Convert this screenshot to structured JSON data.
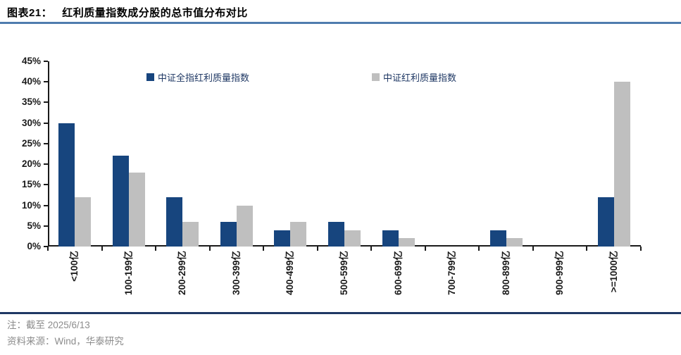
{
  "figure": {
    "label": "图表21：",
    "title": "红利质量指数成分股的总市值分布对比"
  },
  "chart_data": {
    "type": "bar",
    "title": "红利质量指数成分股的总市值分布对比",
    "categories": [
      "<100亿",
      "100-199亿",
      "200-299亿",
      "300-399亿",
      "400-499亿",
      "500-599亿",
      "600-699亿",
      "700-799亿",
      "800-899亿",
      "900-999亿",
      ">=1000亿"
    ],
    "series": [
      {
        "name": "中证全指红利质量指数",
        "color": "#17457E",
        "values": [
          30,
          22,
          12,
          6,
          4,
          6,
          4,
          0,
          4,
          0,
          12
        ]
      },
      {
        "name": "中证红利质量指数",
        "color": "#BFBFBF",
        "values": [
          12,
          18,
          6,
          10,
          6,
          4,
          2,
          0,
          2,
          0,
          40
        ]
      }
    ],
    "xlabel": "",
    "ylabel": "",
    "ylim": [
      0,
      45
    ],
    "ytick_step": 5,
    "ytick_labels": [
      "45%",
      "40%",
      "35%",
      "30%",
      "25%",
      "20%",
      "15%",
      "10%",
      "5%",
      "0%"
    ],
    "ytick_format": "percent",
    "grid": false,
    "legend_position": "top-inside"
  },
  "notes": {
    "note": "注：截至 2025/6/13",
    "source": "资料来源：Wind，华泰研究"
  },
  "colors": {
    "title_text": "#000000",
    "title_rule": "#4F7CAE",
    "footer_rule": "#1F3864",
    "axis": "#1A1A1A",
    "tick_label": "#1A1A1A",
    "legend_text": "#1F3864",
    "note_text": "#8C8C8C",
    "bar_navy": "#17457E",
    "bar_gray": "#BFBFBF"
  }
}
